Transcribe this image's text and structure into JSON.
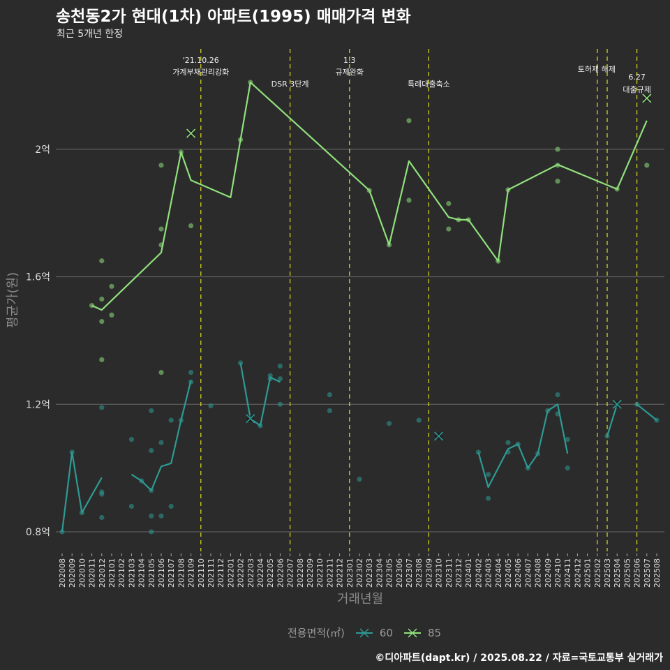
{
  "title": "송천동2가 현대(1차) 아파트(1995) 매매가격 변화",
  "subtitle": "최근 5개년 한정",
  "caption": "©디아파트(dapt.kr) / 2025.08.22 / 자료=국토교통부 실거래가",
  "chart_data": {
    "type": "line",
    "title": "송천동2가 현대(1차) 아파트(1995) 매매가격 변화",
    "xlabel": "거래년월",
    "ylabel": "평균가(원)",
    "ylim": [
      0.72,
      2.3
    ],
    "yticks": [
      {
        "value": 0.8,
        "label": "0.8억"
      },
      {
        "value": 1.2,
        "label": "1.2억"
      },
      {
        "value": 1.6,
        "label": "1.6억"
      },
      {
        "value": 2.0,
        "label": "2억"
      }
    ],
    "x_ticks": [
      "202008",
      "202009",
      "202010",
      "202011",
      "202012",
      "202101",
      "202102",
      "202103",
      "202104",
      "202105",
      "202106",
      "202107",
      "202108",
      "202109",
      "202110",
      "202111",
      "202112",
      "202201",
      "202202",
      "202203",
      "202204",
      "202205",
      "202206",
      "202207",
      "202208",
      "202209",
      "202210",
      "202211",
      "202212",
      "202301",
      "202302",
      "202303",
      "202304",
      "202305",
      "202306",
      "202307",
      "202308",
      "202309",
      "202310",
      "202311",
      "202312",
      "202401",
      "202402",
      "202403",
      "202404",
      "202405",
      "202406",
      "202407",
      "202408",
      "202409",
      "202410",
      "202411",
      "202412",
      "202501",
      "202502",
      "202503",
      "202504",
      "202505",
      "202506",
      "202507",
      "202508"
    ],
    "legend": {
      "title": "전용면적(㎡)",
      "position": "bottom"
    },
    "grid": true,
    "series": [
      {
        "name": "60",
        "color": "#2e9a94",
        "line_segments": [
          [
            [
              "202008",
              0.8
            ],
            [
              "202009",
              1.05
            ],
            [
              "202010",
              0.86
            ],
            [
              "202012",
              0.97
            ]
          ],
          [
            [
              "202103",
              0.98
            ],
            [
              "202104",
              0.96
            ],
            [
              "202105",
              0.93
            ],
            [
              "202106",
              1.005
            ],
            [
              "202107",
              1.015
            ],
            [
              "202108",
              1.15
            ],
            [
              "202109",
              1.275
            ]
          ],
          [
            [
              "202202",
              1.33
            ],
            [
              "202203",
              1.155
            ],
            [
              "202204",
              1.133
            ],
            [
              "202205",
              1.285
            ],
            [
              "202206",
              1.27
            ]
          ],
          [
            [
              "202402",
              1.05
            ],
            [
              "202403",
              0.94
            ],
            [
              "202405",
              1.06
            ],
            [
              "202406",
              1.075
            ],
            [
              "202407",
              1.0
            ],
            [
              "202408",
              1.045
            ],
            [
              "202409",
              1.18
            ],
            [
              "202410",
              1.2
            ],
            [
              "202411",
              1.045
            ]
          ],
          [
            [
              "202503",
              1.1
            ],
            [
              "202504",
              1.2
            ]
          ],
          [
            [
              "202506",
              1.2
            ],
            [
              "202508",
              1.15
            ]
          ]
        ],
        "points": [
          [
            "202008",
            0.8
          ],
          [
            "202009",
            1.05
          ],
          [
            "202010",
            0.86
          ],
          [
            "202012",
            1.19
          ],
          [
            "202012",
            0.925
          ],
          [
            "202012",
            0.918
          ],
          [
            "202012",
            0.845
          ],
          [
            "202103",
            1.09
          ],
          [
            "202103",
            0.88
          ],
          [
            "202104",
            0.96
          ],
          [
            "202105",
            1.18
          ],
          [
            "202105",
            1.055
          ],
          [
            "202105",
            0.93
          ],
          [
            "202105",
            0.85
          ],
          [
            "202105",
            0.8
          ],
          [
            "202106",
            1.08
          ],
          [
            "202106",
            0.85
          ],
          [
            "202107",
            1.15
          ],
          [
            "202107",
            0.88
          ],
          [
            "202108",
            1.15
          ],
          [
            "202109",
            1.3
          ],
          [
            "202109",
            1.27
          ],
          [
            "202111",
            1.195
          ],
          [
            "202202",
            1.33
          ],
          [
            "202204",
            1.133
          ],
          [
            "202205",
            1.29
          ],
          [
            "202205",
            1.28
          ],
          [
            "202206",
            1.32
          ],
          [
            "202206",
            1.28
          ],
          [
            "202206",
            1.2
          ],
          [
            "202211",
            1.23
          ],
          [
            "202211",
            1.18
          ],
          [
            "202302",
            0.965
          ],
          [
            "202305",
            1.14
          ],
          [
            "202308",
            1.15
          ],
          [
            "202402",
            1.05
          ],
          [
            "202403",
            0.98
          ],
          [
            "202403",
            0.905
          ],
          [
            "202405",
            1.08
          ],
          [
            "202405",
            1.05
          ],
          [
            "202406",
            1.075
          ],
          [
            "202407",
            1.0
          ],
          [
            "202408",
            1.045
          ],
          [
            "202409",
            1.18
          ],
          [
            "202410",
            1.23
          ],
          [
            "202410",
            1.17
          ],
          [
            "202411",
            1.09
          ],
          [
            "202411",
            1.0
          ],
          [
            "202503",
            1.1
          ],
          [
            "202506",
            1.2
          ],
          [
            "202508",
            1.15
          ]
        ],
        "crosses": [
          [
            "202203",
            1.155
          ],
          [
            "202310",
            1.1
          ],
          [
            "202504",
            1.2
          ]
        ]
      },
      {
        "name": "85",
        "color": "#90e07c",
        "line_segments": [
          [
            [
              "202011",
              1.51
            ],
            [
              "202012",
              1.496
            ],
            [
              "202106",
              1.676
            ],
            [
              "202108",
              1.991
            ],
            [
              "202109",
              1.903
            ],
            [
              "202201",
              1.849
            ],
            [
              "202202",
              2.03
            ],
            [
              "202203",
              2.21
            ],
            [
              "202303",
              1.871
            ],
            [
              "202305",
              1.7
            ],
            [
              "202307",
              1.963
            ],
            [
              "202311",
              1.787
            ],
            [
              "202312",
              1.779
            ],
            [
              "202401",
              1.779
            ],
            [
              "202404",
              1.649
            ],
            [
              "202405",
              1.873
            ],
            [
              "202410",
              1.952
            ],
            [
              "202504",
              1.875
            ],
            [
              "202507",
              2.09
            ]
          ]
        ],
        "points": [
          [
            "202011",
            1.51
          ],
          [
            "202012",
            1.65
          ],
          [
            "202012",
            1.53
          ],
          [
            "202012",
            1.46
          ],
          [
            "202012",
            1.34
          ],
          [
            "202101",
            1.57
          ],
          [
            "202101",
            1.48
          ],
          [
            "202106",
            1.95
          ],
          [
            "202106",
            1.75
          ],
          [
            "202106",
            1.7
          ],
          [
            "202106",
            1.3
          ],
          [
            "202108",
            1.991
          ],
          [
            "202109",
            1.76
          ],
          [
            "202202",
            2.03
          ],
          [
            "202203",
            2.21
          ],
          [
            "202303",
            1.871
          ],
          [
            "202305",
            1.7
          ],
          [
            "202307",
            2.09
          ],
          [
            "202307",
            1.84
          ],
          [
            "202311",
            1.83
          ],
          [
            "202311",
            1.75
          ],
          [
            "202312",
            1.779
          ],
          [
            "202401",
            1.779
          ],
          [
            "202404",
            1.649
          ],
          [
            "202405",
            1.873
          ],
          [
            "202410",
            2.0
          ],
          [
            "202410",
            1.95
          ],
          [
            "202410",
            1.9
          ],
          [
            "202504",
            1.875
          ],
          [
            "202507",
            1.95
          ]
        ],
        "crosses": [
          [
            "202109",
            2.05
          ],
          [
            "202507",
            2.16
          ]
        ]
      }
    ],
    "annotations": [
      {
        "month": "202110",
        "lines": [
          "'21.10.26",
          "가계부채관리강화"
        ]
      },
      {
        "month": "202207",
        "lines": [
          "DSR 3단계"
        ]
      },
      {
        "month": "202301",
        "lines": [
          "1.3",
          "규제완화"
        ]
      },
      {
        "month": "202309",
        "lines": [
          "특례대출축소"
        ]
      },
      {
        "month": "202502",
        "lines": [
          "토허제 해제"
        ]
      },
      {
        "month": "202503",
        "lines": []
      },
      {
        "month": "202506",
        "lines": [
          "6.27",
          "대출규제"
        ]
      }
    ]
  }
}
